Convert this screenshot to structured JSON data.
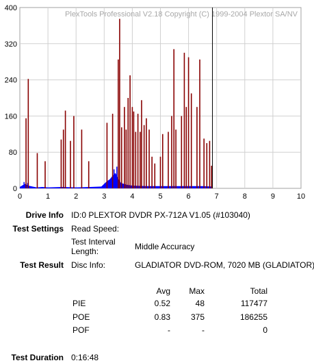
{
  "chart_data": {
    "type": "bar",
    "watermark": "PlexTools Professional V2.18 Copyright (C) 1999-2004 Plextor SA/NV",
    "xlim": [
      0,
      10
    ],
    "ylim": [
      0,
      400
    ],
    "xticks": [
      0,
      1,
      2,
      3,
      4,
      5,
      6,
      7,
      8,
      9,
      10
    ],
    "yticks": [
      0,
      80,
      160,
      240,
      320,
      400
    ],
    "grid": true,
    "marker_x": 6.85,
    "series": [
      {
        "color": "#880000",
        "x": [
          0.22,
          0.3,
          0.62,
          0.9,
          1.47,
          1.55,
          1.62,
          1.8,
          1.92,
          2.2,
          2.45,
          3.1,
          3.3,
          3.5,
          3.55,
          3.62,
          3.72,
          3.78,
          3.85,
          3.92,
          4.0,
          4.05,
          4.12,
          4.2,
          4.28,
          4.33,
          4.42,
          4.5,
          4.6,
          4.7,
          4.8,
          5.0,
          5.08,
          5.28,
          5.4,
          5.48,
          5.55,
          5.75,
          5.85,
          5.92,
          6.0,
          6.1,
          6.3,
          6.4,
          6.55,
          6.65,
          6.75,
          6.82
        ],
        "values": [
          155,
          242,
          78,
          60,
          108,
          130,
          172,
          105,
          160,
          130,
          60,
          145,
          165,
          285,
          375,
          135,
          180,
          130,
          200,
          250,
          180,
          170,
          125,
          165,
          125,
          195,
          140,
          155,
          130,
          70,
          55,
          70,
          120,
          125,
          160,
          308,
          130,
          160,
          300,
          180,
          290,
          210,
          180,
          285,
          110,
          100,
          105,
          50
        ]
      },
      {
        "color": "#0000ff",
        "x": [
          0,
          0.1,
          0.2,
          0.3,
          0.45,
          0.6,
          0.8,
          1.0,
          1.5,
          2.0,
          2.5,
          2.9,
          3.0,
          3.1,
          3.2,
          3.3,
          3.4,
          3.5,
          3.6,
          3.8,
          4.0,
          4.5,
          5.0,
          5.5,
          6.0,
          6.5,
          6.85
        ],
        "values": [
          3,
          7,
          10,
          6,
          4,
          2,
          3,
          2,
          3,
          2,
          3,
          4,
          10,
          16,
          20,
          28,
          34,
          22,
          12,
          8,
          6,
          5,
          5,
          5,
          5,
          5,
          4
        ],
        "peak_x": [
          0.15,
          0.28,
          3.35,
          3.45
        ],
        "peak_values": [
          14,
          12,
          42,
          48
        ]
      }
    ]
  },
  "info": {
    "drive_info_label": "Drive Info",
    "drive_info_value": "ID:0 PLEXTOR DVDR PX-712A V1.05 (#103040)",
    "test_settings_label": "Test Settings",
    "read_speed_label": "Read Speed:",
    "interval_label": "Test Interval Length:",
    "interval_value": "Middle Accuracy",
    "test_result_label": "Test Result",
    "disc_info_label": "Disc Info:",
    "disc_info_value": "GLADIATOR DVD-ROM, 7020 MB (GLADIATOR)",
    "table": {
      "headers": [
        "Avg",
        "Max",
        "Total"
      ],
      "rows": [
        {
          "name": "PIE",
          "avg": "0.52",
          "max": "48",
          "total": "117477"
        },
        {
          "name": "POE",
          "avg": "0.83",
          "max": "375",
          "total": "186255"
        },
        {
          "name": "POF",
          "avg": "-",
          "max": "-",
          "total": "0"
        }
      ]
    },
    "duration_label": "Test Duration",
    "duration_value": "0:16:48"
  }
}
